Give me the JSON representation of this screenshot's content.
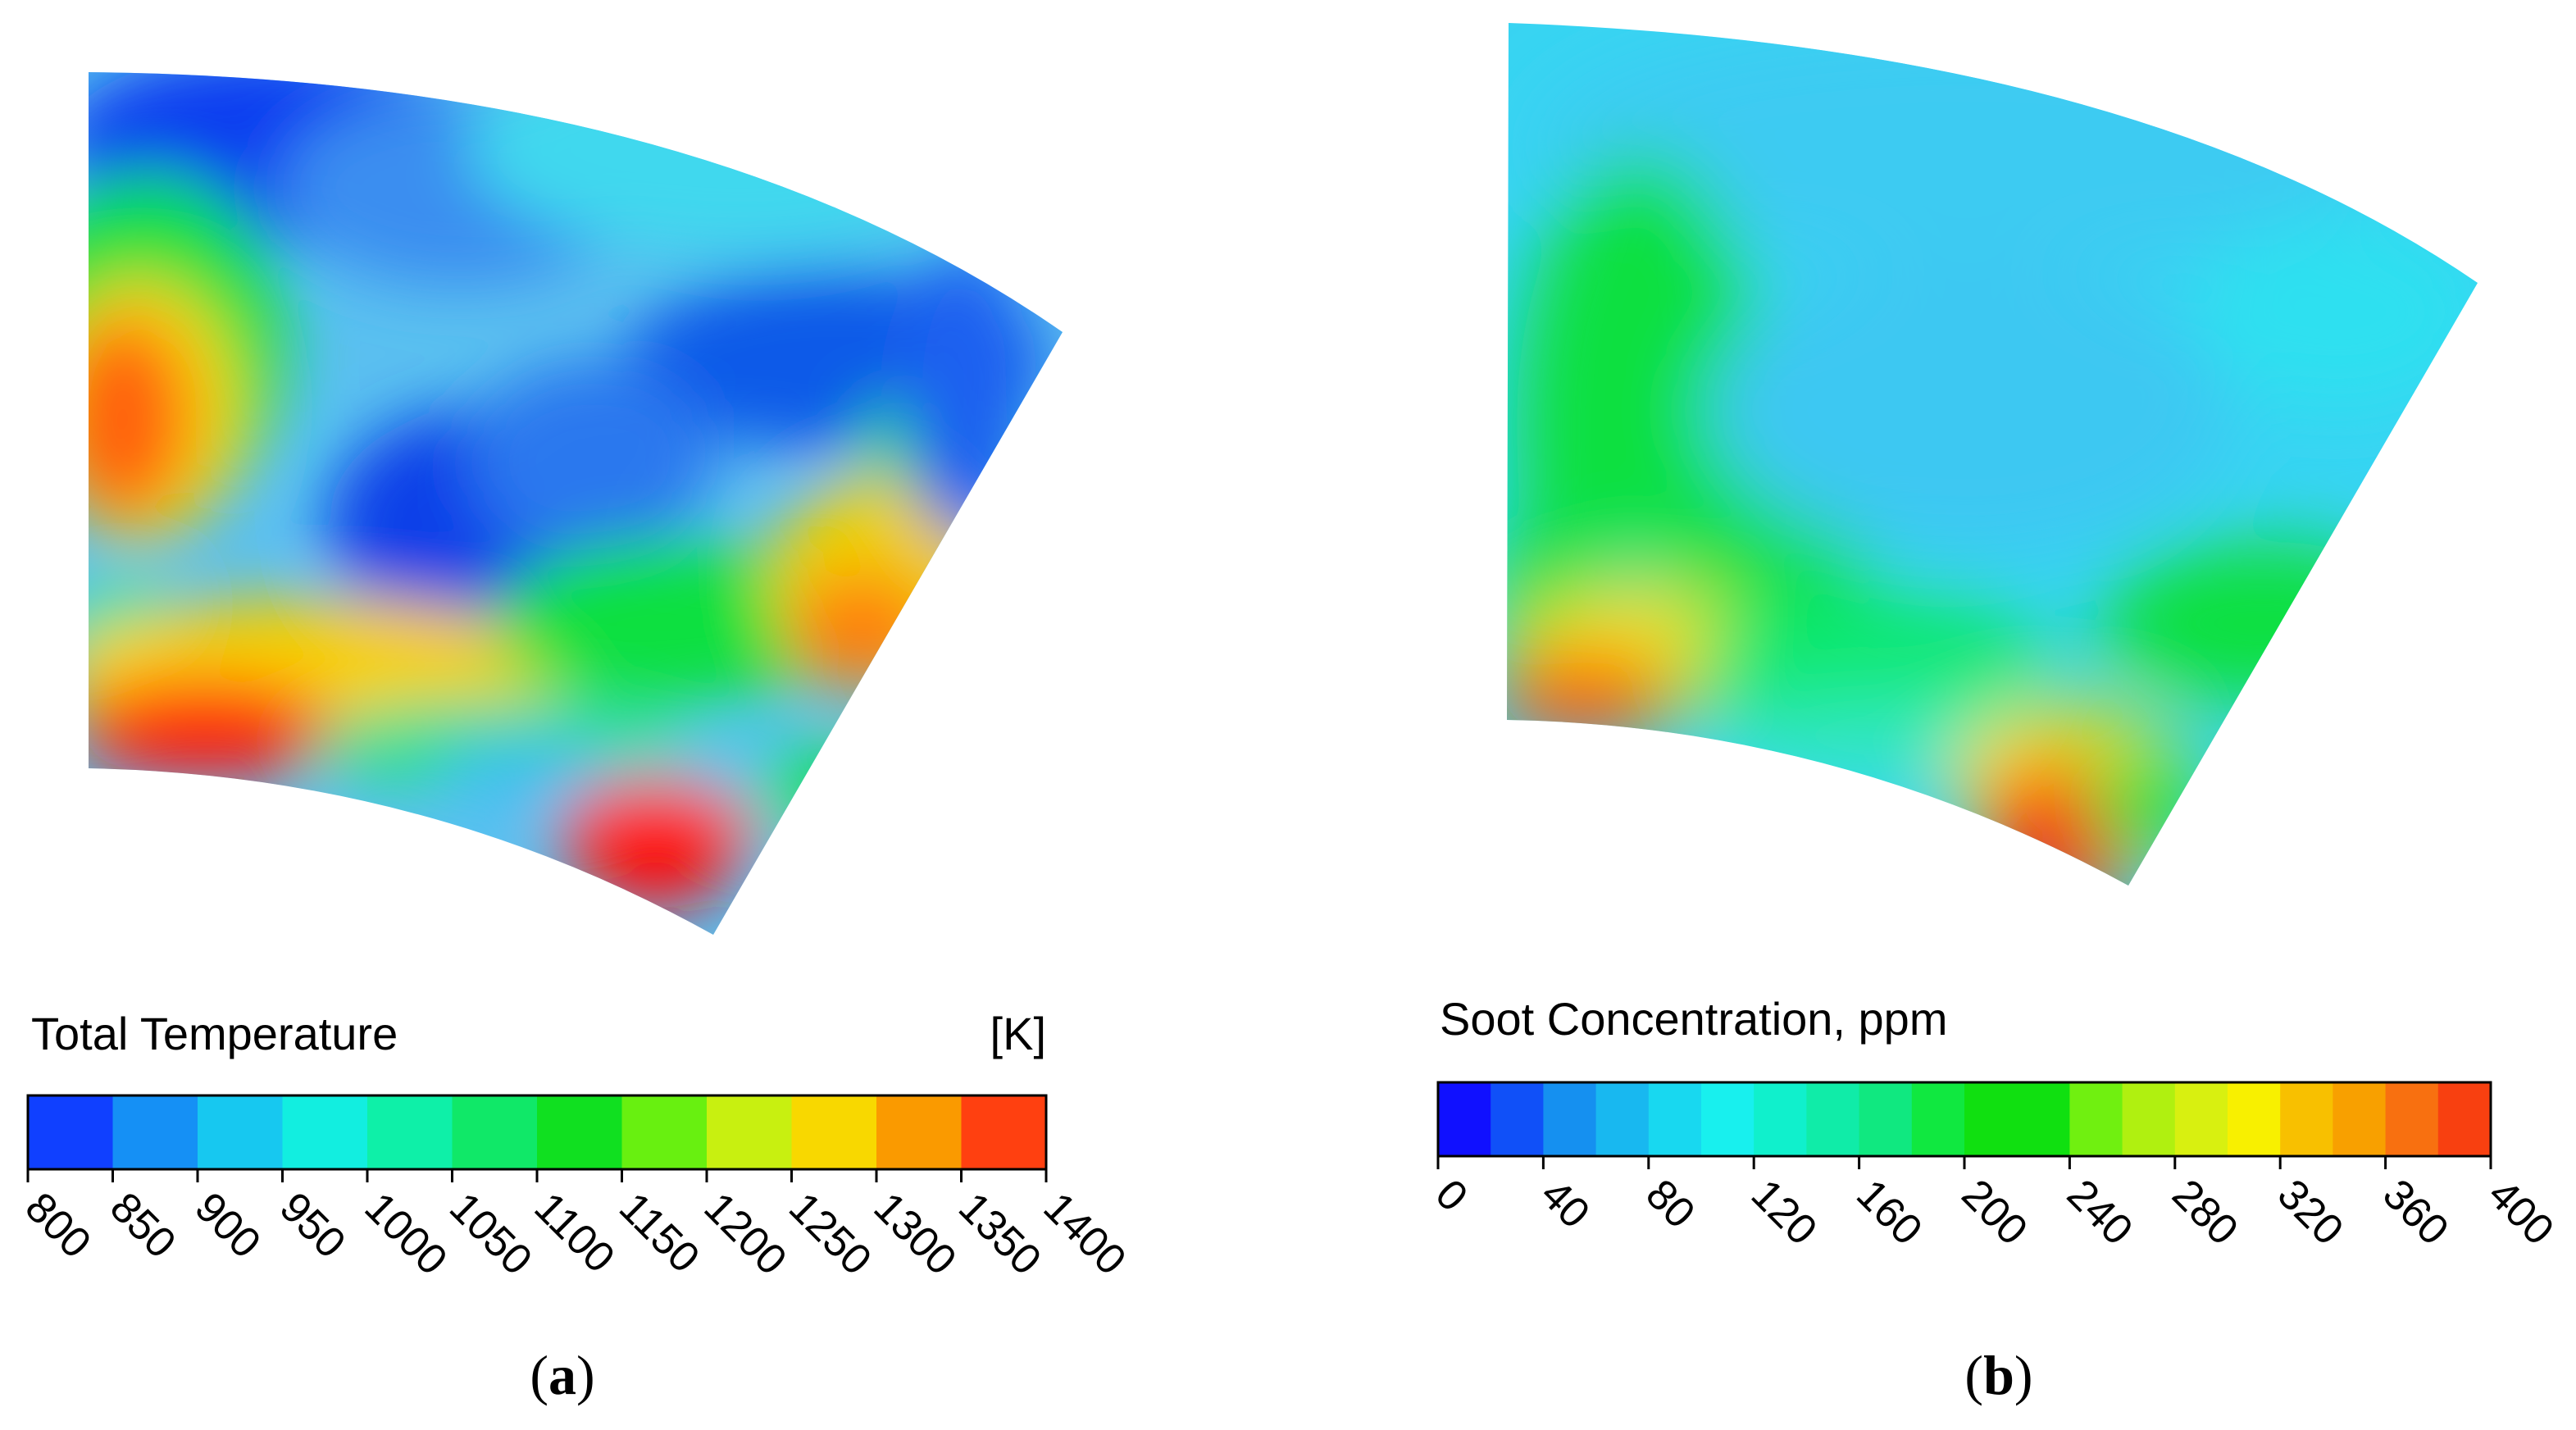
{
  "chart_data": [
    {
      "type": "heatmap",
      "panel_label": "a",
      "colorbar": {
        "title": "Total Temperature",
        "unit": "[K]",
        "range": [
          800,
          1400
        ],
        "ticks": [
          "800",
          "850",
          "900",
          "950",
          "1000",
          "1050",
          "1100",
          "1150",
          "1200",
          "1250",
          "1300",
          "1350",
          "1400"
        ],
        "colors": [
          "#1040ff",
          "#1590f5",
          "#17c8f0",
          "#12eee0",
          "#0ef0a8",
          "#10e868",
          "#10e020",
          "#68f010",
          "#c8f010",
          "#f8d800",
          "#fa9a00",
          "#ff4010"
        ]
      }
    },
    {
      "type": "heatmap",
      "panel_label": "b",
      "colorbar": {
        "title": "Soot Concentration, ppm",
        "unit": "",
        "range": [
          0,
          400
        ],
        "ticks": [
          "0",
          "40",
          "80",
          "120",
          "160",
          "200",
          "240",
          "280",
          "320",
          "360",
          "400"
        ],
        "colors": [
          "#1010ff",
          "#1050f8",
          "#1590f0",
          "#18b8f0",
          "#18d8f0",
          "#18f0ee",
          "#10f0cc",
          "#10eca8",
          "#10e880",
          "#10e840",
          "#10e010",
          "#10e010",
          "#70f010",
          "#b0f010",
          "#d8f010",
          "#f8f000",
          "#f8c000",
          "#f8a000",
          "#f87010",
          "#f84010"
        ]
      }
    }
  ]
}
